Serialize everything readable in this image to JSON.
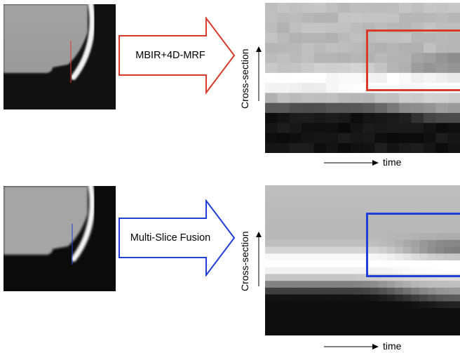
{
  "panels": [
    {
      "method_label": "MBIR+4D-MRF",
      "accent_color": "#d93a2b",
      "y_axis_label": "Cross-section",
      "x_axis_label": "time"
    },
    {
      "method_label": "Multi-Slice Fusion",
      "accent_color": "#1f3fd6",
      "y_axis_label": "Cross-section",
      "x_axis_label": "time"
    }
  ]
}
